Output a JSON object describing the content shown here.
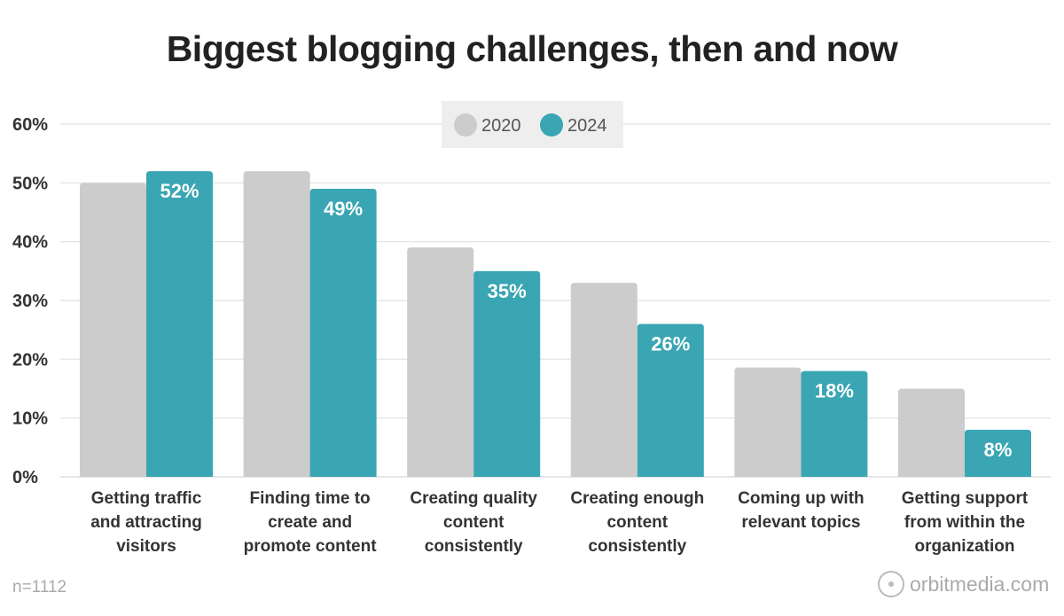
{
  "chart_data": {
    "type": "bar",
    "title": "Biggest blogging challenges, then and now",
    "categories": [
      [
        "Getting traffic",
        "and attracting",
        "visitors"
      ],
      [
        "Finding time to",
        "create and",
        "promote content"
      ],
      [
        "Creating quality",
        "content",
        "consistently"
      ],
      [
        "Creating enough",
        "content",
        "consistently"
      ],
      [
        "Coming up with",
        "relevant topics"
      ],
      [
        "Getting support",
        "from within the",
        "organization"
      ]
    ],
    "series": [
      {
        "name": "2020",
        "color": "#cccccc",
        "values": [
          50,
          52,
          39,
          33,
          18.6,
          15
        ]
      },
      {
        "name": "2024",
        "color": "#3aa5b3",
        "values": [
          52,
          49,
          35,
          26,
          18,
          8
        ],
        "labels": [
          "52%",
          "49%",
          "35%",
          "26%",
          "18%",
          "8%"
        ]
      }
    ],
    "ylim": [
      0,
      60
    ],
    "yticks": [
      "0%",
      "10%",
      "20%",
      "30%",
      "40%",
      "50%",
      "60%"
    ],
    "grid": true,
    "legend": "top-center"
  },
  "footer": {
    "note": "n=1112",
    "logo": "orbitmedia.com"
  }
}
